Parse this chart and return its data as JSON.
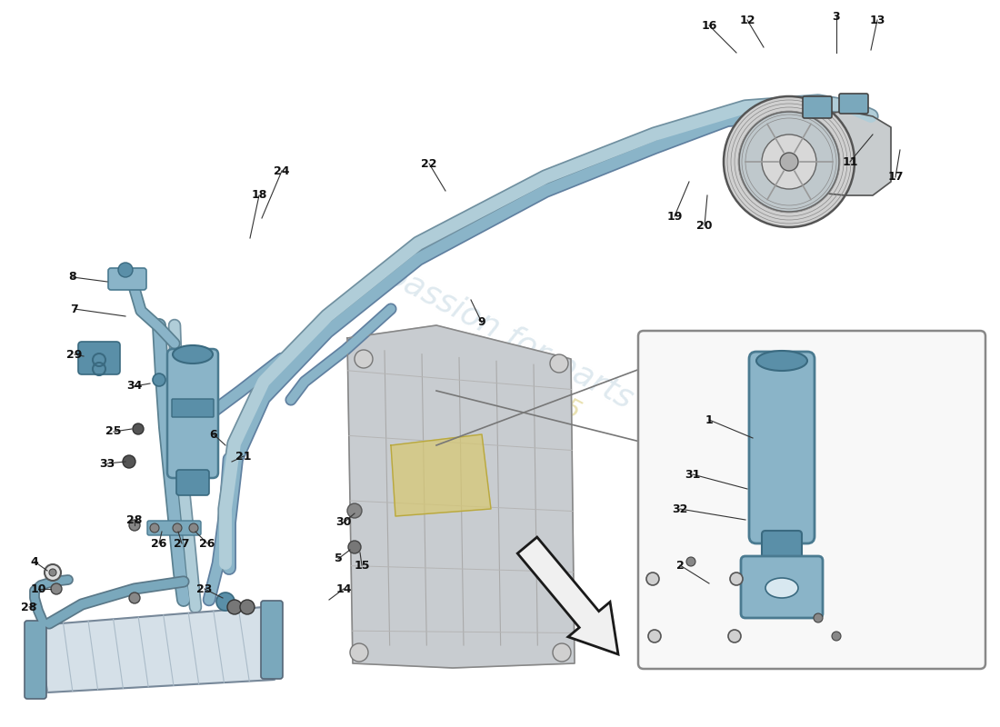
{
  "bg_color": "#ffffff",
  "part_color": "#8ab4c8",
  "part_color_light": "#b0cdd8",
  "part_color_dark": "#5a8fa8",
  "part_color_mid": "#7aa8bc",
  "watermark1": "#c5d8e2",
  "watermark2": "#d8ca72",
  "label_fs": 9
}
